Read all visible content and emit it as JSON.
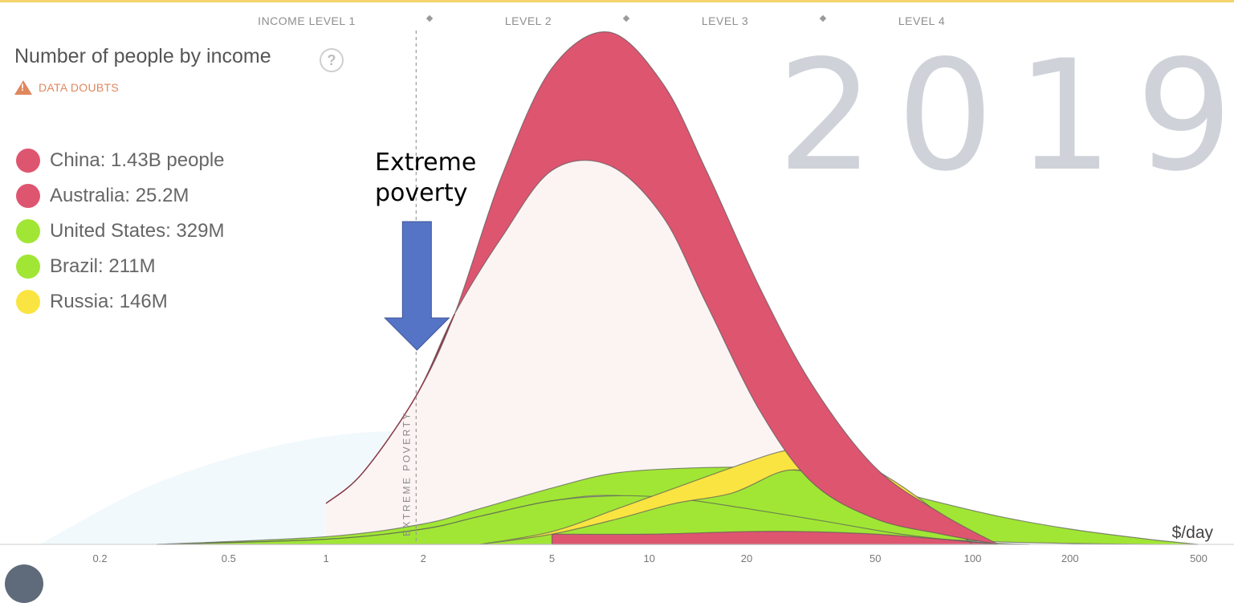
{
  "levels": {
    "labels": [
      "INCOME LEVEL 1",
      "LEVEL 2",
      "LEVEL 3",
      "LEVEL 4"
    ]
  },
  "header": {
    "title": "Number of people by income",
    "help_icon": "question-circle-icon",
    "doubts_icon": "warning-triangle-icon",
    "doubts_label": "DATA DOUBTS"
  },
  "legend": {
    "items": [
      {
        "label": "China: 1.43B people",
        "color": "#de5570"
      },
      {
        "label": "Australia: 25.2M",
        "color": "#de5570"
      },
      {
        "label": "United States: 329M",
        "color": "#a1e635"
      },
      {
        "label": "Brazil: 211M",
        "color": "#a1e635"
      },
      {
        "label": "Russia: 146M",
        "color": "#fae441"
      }
    ]
  },
  "year": "2019",
  "annotation": {
    "line1": "Extreme",
    "line2": "poverty",
    "arrow_color": "#5674c6"
  },
  "chart_data": {
    "type": "area",
    "x_scale": "log",
    "xlim": [
      0.11,
      500
    ],
    "x_ticks": [
      0.2,
      0.5,
      1,
      2,
      5,
      10,
      20,
      50,
      100,
      200,
      500
    ],
    "x_tick_labels": [
      "0.2",
      "0.5",
      "1",
      "2",
      "5",
      "10",
      "20",
      "50",
      "100",
      "200",
      "500"
    ],
    "xlabel": "$/day",
    "poverty_line": 1.9,
    "poverty_label": "EXTREME POVERTY",
    "level_boundaries": [
      2,
      8,
      32
    ],
    "series": [
      {
        "name": "China",
        "color": "#de5570",
        "stack": "red",
        "x": [
          1,
          1.3,
          1.9,
          2.5,
          3.5,
          5,
          7.5,
          11,
          15,
          22,
          32,
          50,
          80,
          120
        ],
        "top": [
          0.08,
          0.14,
          0.29,
          0.45,
          0.72,
          0.93,
          1.0,
          0.9,
          0.73,
          0.5,
          0.31,
          0.15,
          0.06,
          0.0
        ],
        "base": [
          0.08,
          0.14,
          0.29,
          0.45,
          0.6,
          0.73,
          0.74,
          0.64,
          0.47,
          0.26,
          0.12,
          0.05,
          0.02,
          0.0
        ]
      },
      {
        "name": "Australia",
        "color": "#de5570",
        "stack": "red",
        "x": [
          5,
          10,
          20,
          30,
          50,
          80,
          120
        ],
        "top": [
          0.02,
          0.02,
          0.025,
          0.025,
          0.02,
          0.01,
          0.0
        ],
        "base": [
          0.0,
          0.0,
          0.0,
          0.0,
          0.0,
          0.0,
          0.0
        ]
      },
      {
        "name": "United States",
        "color": "#a1e635",
        "stack": "green",
        "x": [
          0.3,
          1,
          2,
          3,
          5,
          8,
          15,
          25,
          40,
          70,
          120,
          200,
          350,
          500
        ],
        "top": [
          0.0,
          0.015,
          0.04,
          0.07,
          0.11,
          0.14,
          0.15,
          0.148,
          0.13,
          0.09,
          0.055,
          0.03,
          0.01,
          0.0
        ],
        "base": [
          0.0,
          0.01,
          0.03,
          0.055,
          0.085,
          0.095,
          0.07,
          0.045,
          0.025,
          0.012,
          0.005,
          0.002,
          0.0,
          0.0
        ]
      },
      {
        "name": "Brazil",
        "color": "#a1e635",
        "stack": "green",
        "x": [
          0.3,
          1,
          2,
          3,
          5,
          8,
          12,
          20,
          35,
          60,
          100,
          150
        ],
        "top": [
          0.0,
          0.01,
          0.03,
          0.055,
          0.085,
          0.095,
          0.09,
          0.07,
          0.045,
          0.02,
          0.005,
          0.0
        ],
        "base": [
          0.0,
          0.0,
          0.0,
          0.0,
          0.0,
          0.0,
          0.0,
          0.0,
          0.0,
          0.0,
          0.0,
          0.0
        ]
      },
      {
        "name": "Russia",
        "color": "#fae441",
        "stack": "yellow",
        "x": [
          3,
          5,
          8,
          12,
          18,
          25,
          30,
          40,
          55,
          75,
          100
        ],
        "top": [
          0.0,
          0.025,
          0.07,
          0.11,
          0.15,
          0.18,
          0.185,
          0.175,
          0.13,
          0.07,
          0.0
        ],
        "base": [
          0.0,
          0.02,
          0.05,
          0.08,
          0.1,
          0.14,
          0.145,
          0.14,
          0.11,
          0.06,
          0.0
        ]
      }
    ]
  }
}
